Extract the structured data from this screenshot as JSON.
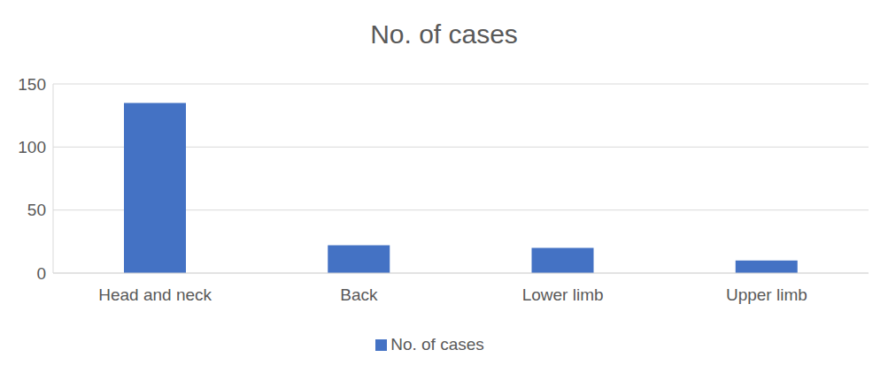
{
  "chart_data": {
    "type": "bar",
    "title": "No. of cases",
    "categories": [
      "Head and neck",
      "Back",
      "Lower limb",
      "Upper limb"
    ],
    "series": [
      {
        "name": "No. of cases",
        "color": "#4472c4",
        "values": [
          135,
          22,
          20,
          10
        ]
      }
    ],
    "ylim": [
      0,
      150
    ],
    "yticks": [
      0,
      50,
      100,
      150
    ],
    "grid": true,
    "legend": "bottom"
  }
}
